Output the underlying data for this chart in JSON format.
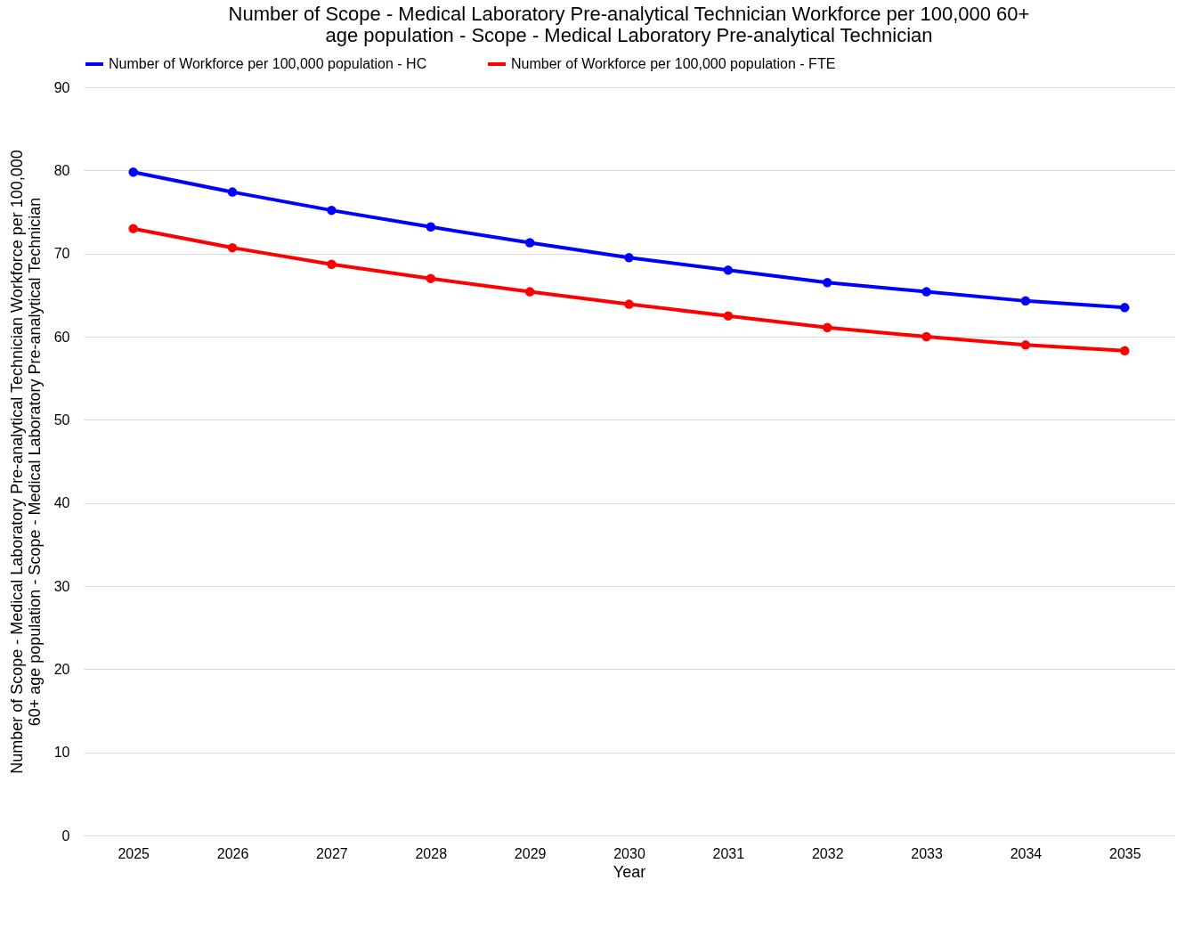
{
  "chart_data": {
    "type": "line",
    "title": "Number of Scope - Medical Laboratory Pre-analytical Technician Workforce per 100,000 60+ age population - Scope - Medical Laboratory Pre-analytical Technician",
    "xlabel": "Year",
    "ylabel": "Number of Scope - Medical Laboratory Pre-analytical Technician Workforce per 100,000 60+ age population - Scope - Medical Laboratory Pre-analytical Technician",
    "categories": [
      "2025",
      "2026",
      "2027",
      "2028",
      "2029",
      "2030",
      "2031",
      "2032",
      "2033",
      "2034",
      "2035"
    ],
    "series": [
      {
        "name": "Number of Workforce per 100,000 population - HC",
        "color": "#0000ff",
        "values": [
          79.8,
          77.4,
          75.2,
          73.2,
          71.3,
          69.5,
          68.0,
          66.5,
          65.4,
          64.3,
          63.5
        ]
      },
      {
        "name": "Number of Workforce per 100,000 population - FTE",
        "color": "#ff0000",
        "values": [
          73.0,
          70.7,
          68.7,
          67.0,
          65.4,
          63.9,
          62.5,
          61.1,
          60.0,
          59.0,
          58.3
        ]
      }
    ],
    "ylim": [
      0,
      90
    ],
    "yticks": [
      0,
      10,
      20,
      30,
      40,
      50,
      60,
      70,
      80,
      90
    ],
    "grid": "y",
    "legend": "top",
    "marker": "circle",
    "line_style": "solid"
  }
}
